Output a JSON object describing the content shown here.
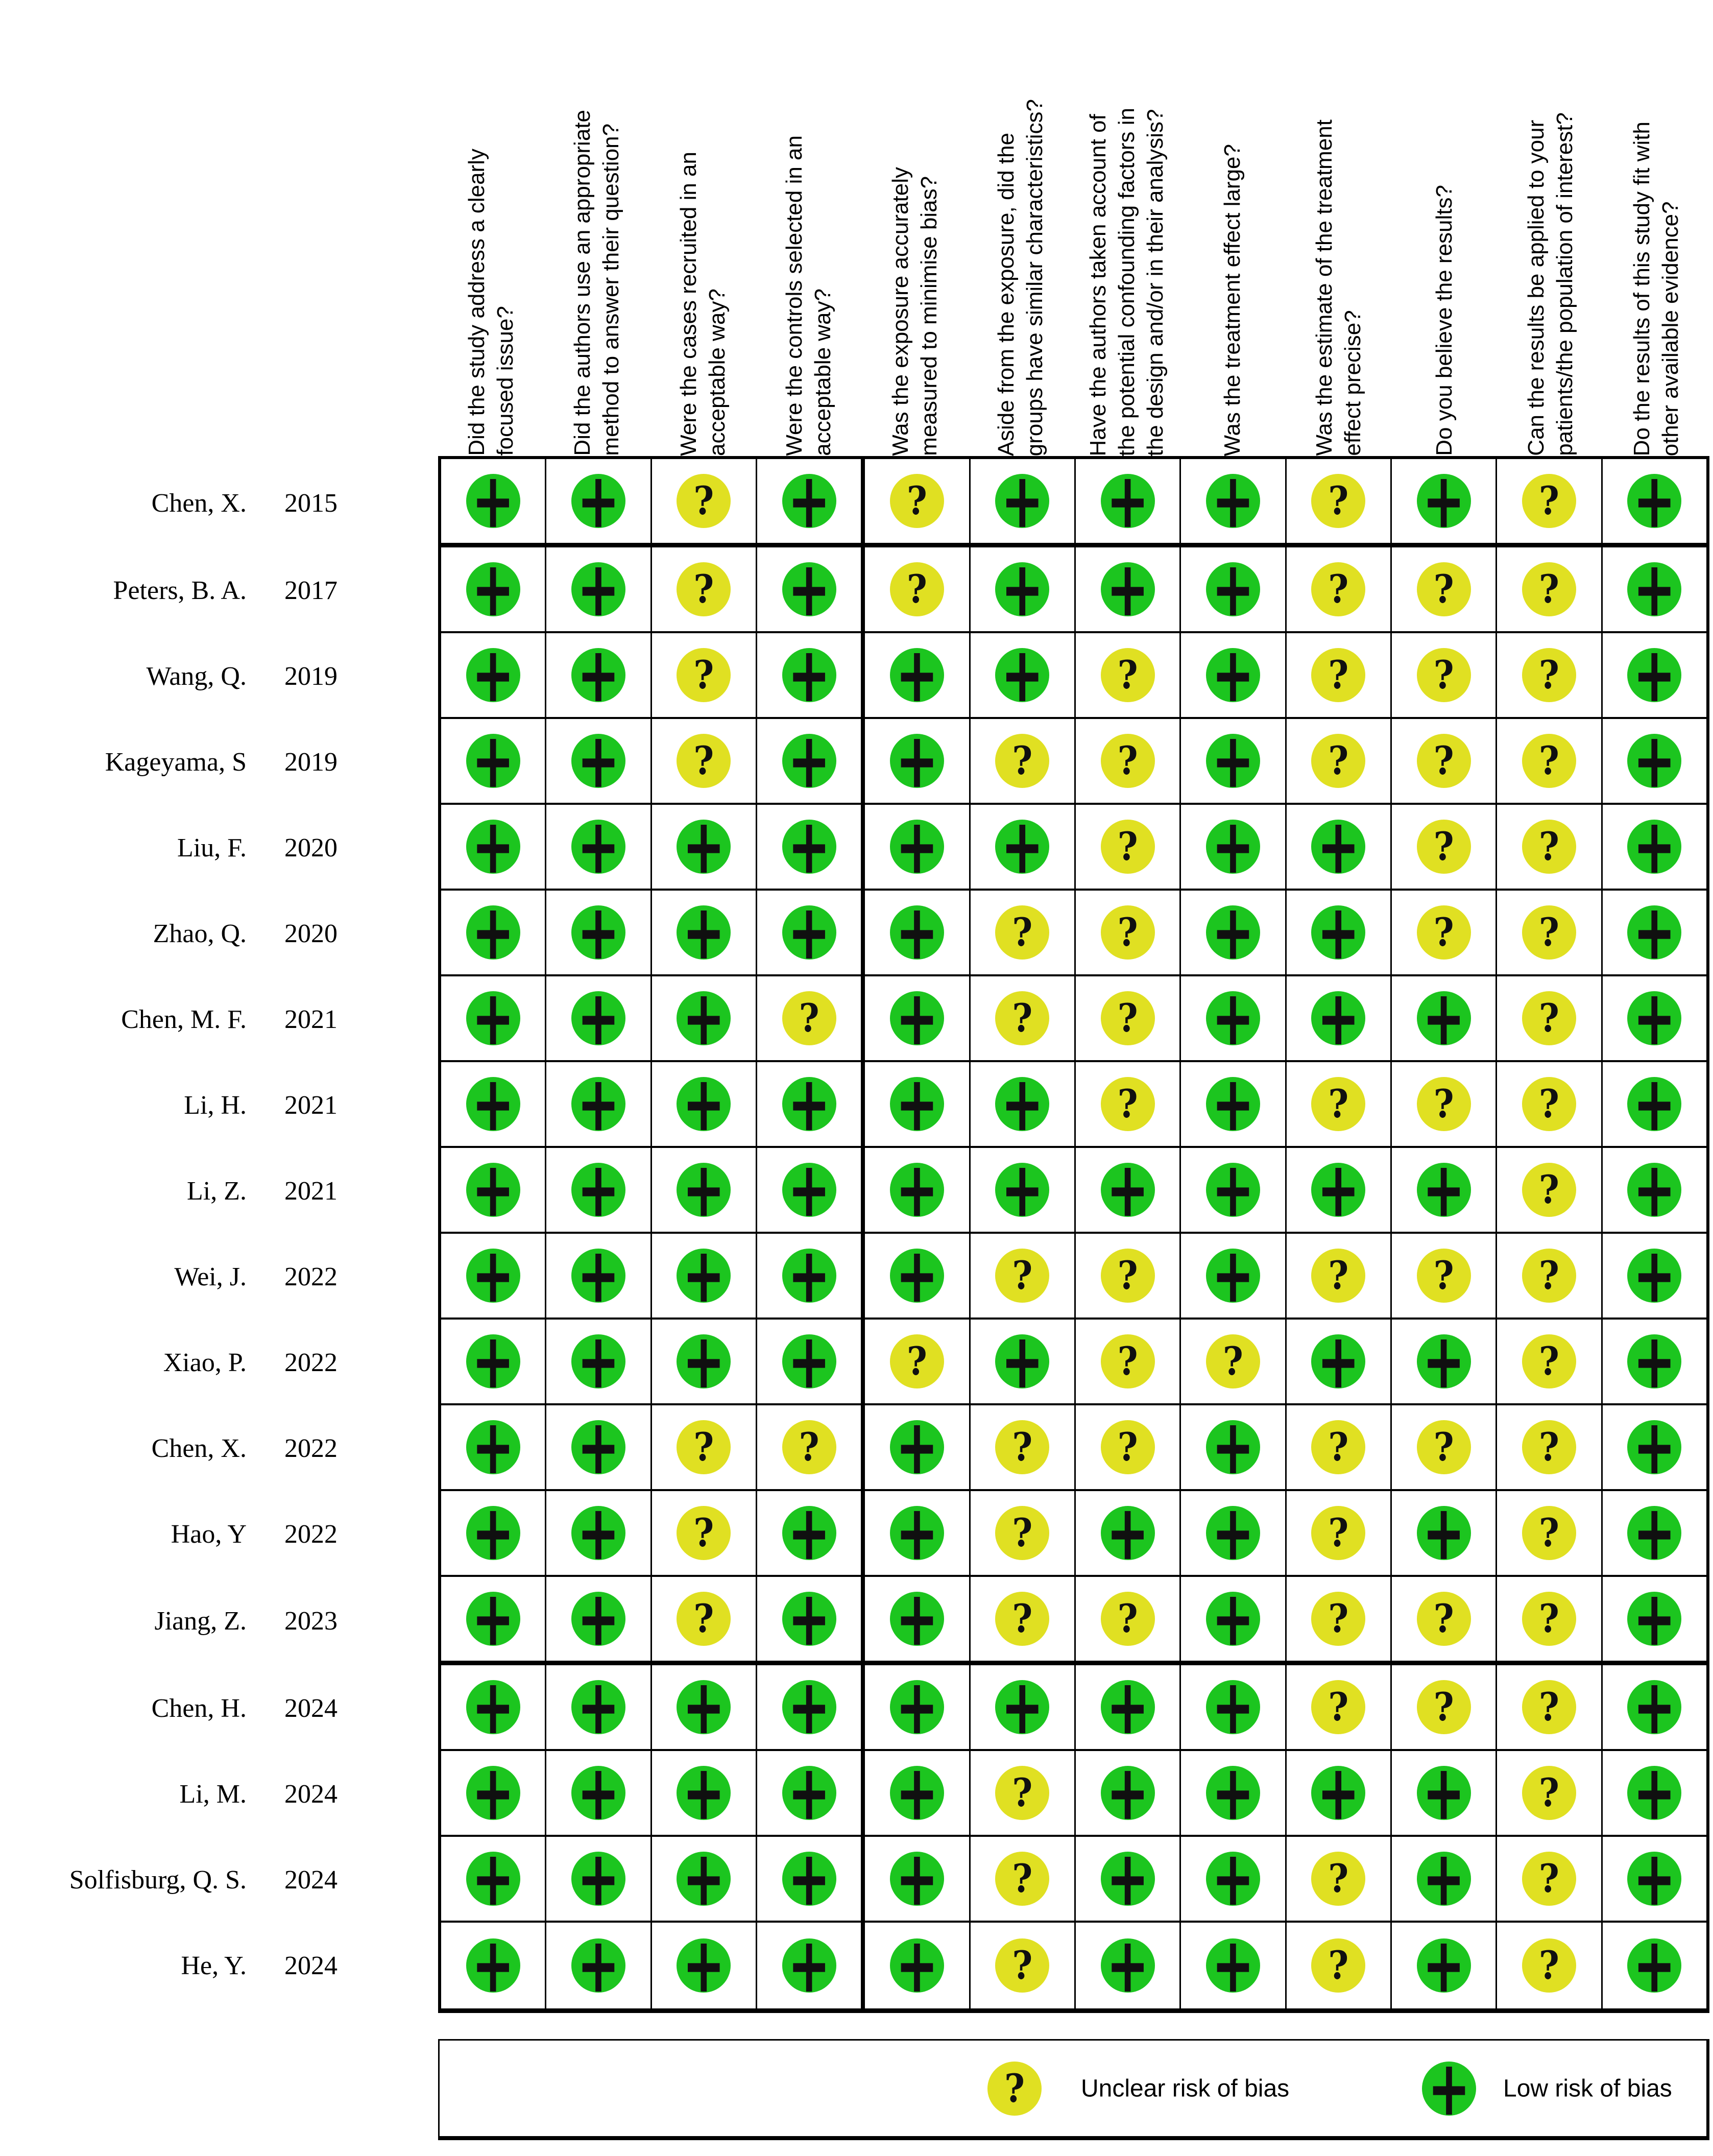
{
  "colors": {
    "low": "#1cc51f",
    "unclear": "#e0e022",
    "glyph": "#101010",
    "border": "#000000",
    "background": "#ffffff"
  },
  "symbols": {
    "low": "+",
    "unclear": "?"
  },
  "chart_data": {
    "type": "heatmap",
    "value_domain": [
      "low",
      "unclear"
    ],
    "columns": [
      "Did the study address a clearly\nfocused issue?",
      "Did the authors use an appropriate\nmethod to answer their question?",
      "Were the cases recruited in an\nacceptable way?",
      "Were the controls selected in an\nacceptable way?",
      "Was the exposure accurately\nmeasured to minimise bias?",
      "Aside from the exposure, did the\ngroups have similar characteristics?",
      "Have the authors taken account of\nthe potential confounding factors in\nthe design and/or in their analysis?",
      "Was the treatment effect large?",
      "Was the estimate of the treatment\neffect precise?",
      "Do you believe the results?",
      "Can the results be applied to your\npatients/the population of interest?",
      "Do the results of this study fit with\nother available evidence?"
    ],
    "rows": [
      {
        "study": "Chen, X.",
        "year": "2015",
        "ratings": [
          "low",
          "low",
          "unclear",
          "low",
          "unclear",
          "low",
          "low",
          "low",
          "unclear",
          "low",
          "unclear",
          "low"
        ]
      },
      {
        "study": "Peters, B. A.",
        "year": "2017",
        "ratings": [
          "low",
          "low",
          "unclear",
          "low",
          "unclear",
          "low",
          "low",
          "low",
          "unclear",
          "unclear",
          "unclear",
          "low"
        ]
      },
      {
        "study": "Wang, Q.",
        "year": "2019",
        "ratings": [
          "low",
          "low",
          "unclear",
          "low",
          "low",
          "low",
          "unclear",
          "low",
          "unclear",
          "unclear",
          "unclear",
          "low"
        ]
      },
      {
        "study": "Kageyama, S",
        "year": "2019",
        "ratings": [
          "low",
          "low",
          "unclear",
          "low",
          "low",
          "unclear",
          "unclear",
          "low",
          "unclear",
          "unclear",
          "unclear",
          "low"
        ]
      },
      {
        "study": "Liu, F.",
        "year": "2020",
        "ratings": [
          "low",
          "low",
          "low",
          "low",
          "low",
          "low",
          "unclear",
          "low",
          "low",
          "unclear",
          "unclear",
          "low"
        ]
      },
      {
        "study": "Zhao, Q.",
        "year": "2020",
        "ratings": [
          "low",
          "low",
          "low",
          "low",
          "low",
          "unclear",
          "unclear",
          "low",
          "low",
          "unclear",
          "unclear",
          "low"
        ]
      },
      {
        "study": "Chen, M. F.",
        "year": "2021",
        "ratings": [
          "low",
          "low",
          "low",
          "unclear",
          "low",
          "unclear",
          "unclear",
          "low",
          "low",
          "low",
          "unclear",
          "low"
        ]
      },
      {
        "study": "Li, H.",
        "year": "2021",
        "ratings": [
          "low",
          "low",
          "low",
          "low",
          "low",
          "low",
          "unclear",
          "low",
          "unclear",
          "unclear",
          "unclear",
          "low"
        ]
      },
      {
        "study": "Li, Z.",
        "year": "2021",
        "ratings": [
          "low",
          "low",
          "low",
          "low",
          "low",
          "low",
          "low",
          "low",
          "low",
          "low",
          "unclear",
          "low"
        ]
      },
      {
        "study": "Wei, J.",
        "year": "2022",
        "ratings": [
          "low",
          "low",
          "low",
          "low",
          "low",
          "unclear",
          "unclear",
          "low",
          "unclear",
          "unclear",
          "unclear",
          "low"
        ]
      },
      {
        "study": "Xiao, P.",
        "year": "2022",
        "ratings": [
          "low",
          "low",
          "low",
          "low",
          "unclear",
          "low",
          "unclear",
          "unclear",
          "low",
          "low",
          "unclear",
          "low"
        ]
      },
      {
        "study": "Chen, X.",
        "year": "2022",
        "ratings": [
          "low",
          "low",
          "unclear",
          "unclear",
          "low",
          "unclear",
          "unclear",
          "low",
          "unclear",
          "unclear",
          "unclear",
          "low"
        ]
      },
      {
        "study": "Hao, Y",
        "year": "2022",
        "ratings": [
          "low",
          "low",
          "unclear",
          "low",
          "low",
          "unclear",
          "low",
          "low",
          "unclear",
          "low",
          "unclear",
          "low"
        ]
      },
      {
        "study": "Jiang, Z.",
        "year": "2023",
        "ratings": [
          "low",
          "low",
          "unclear",
          "low",
          "low",
          "unclear",
          "unclear",
          "low",
          "unclear",
          "unclear",
          "unclear",
          "low"
        ]
      },
      {
        "study": "Chen, H.",
        "year": "2024",
        "ratings": [
          "low",
          "low",
          "low",
          "low",
          "low",
          "low",
          "low",
          "low",
          "unclear",
          "unclear",
          "unclear",
          "low"
        ]
      },
      {
        "study": "Li, M.",
        "year": "2024",
        "ratings": [
          "low",
          "low",
          "low",
          "low",
          "low",
          "unclear",
          "low",
          "low",
          "low",
          "low",
          "unclear",
          "low"
        ]
      },
      {
        "study": "Solfisburg, Q. S.",
        "year": "2024",
        "ratings": [
          "low",
          "low",
          "low",
          "low",
          "low",
          "unclear",
          "low",
          "low",
          "unclear",
          "low",
          "unclear",
          "low"
        ]
      },
      {
        "study": "He, Y.",
        "year": "2024",
        "ratings": [
          "low",
          "low",
          "low",
          "low",
          "low",
          "unclear",
          "low",
          "low",
          "unclear",
          "low",
          "unclear",
          "low"
        ]
      }
    ],
    "legend": [
      {
        "value": "unclear",
        "symbol": "?",
        "label": "Unclear risk of bias"
      },
      {
        "value": "low",
        "symbol": "+",
        "label": "Low risk of bias"
      }
    ]
  }
}
